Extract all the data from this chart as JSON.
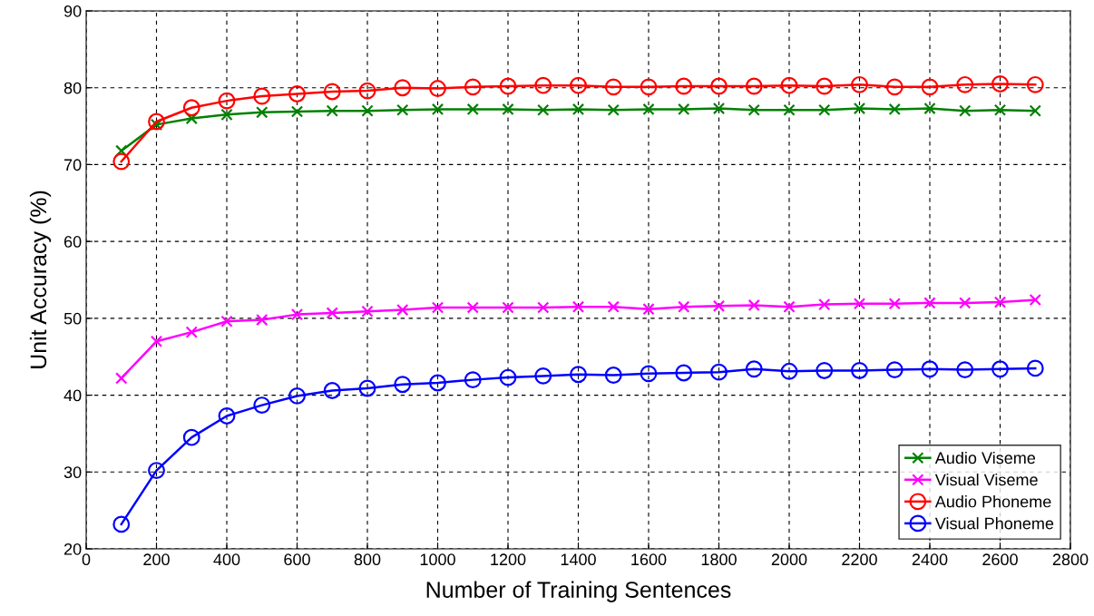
{
  "chart_data": {
    "type": "line",
    "xlabel": "Number of Training Sentences",
    "ylabel": "Unit Accuracy (%)",
    "x": [
      100,
      200,
      300,
      400,
      500,
      600,
      700,
      800,
      900,
      1000,
      1100,
      1200,
      1300,
      1400,
      1500,
      1600,
      1700,
      1800,
      1900,
      2000,
      2100,
      2200,
      2300,
      2400,
      2500,
      2600,
      2700
    ],
    "series": [
      {
        "name": "Audio Viseme",
        "color": "#008000",
        "marker": "cross",
        "values": [
          71.8,
          75.2,
          76.0,
          76.5,
          76.8,
          76.9,
          77.0,
          77.0,
          77.1,
          77.2,
          77.2,
          77.2,
          77.1,
          77.2,
          77.1,
          77.2,
          77.2,
          77.3,
          77.1,
          77.1,
          77.1,
          77.3,
          77.2,
          77.3,
          77.0,
          77.1,
          77.0
        ]
      },
      {
        "name": "Visual Viseme",
        "color": "#ff00ff",
        "marker": "cross",
        "values": [
          42.2,
          47.0,
          48.2,
          49.6,
          49.8,
          50.5,
          50.7,
          50.9,
          51.1,
          51.4,
          51.4,
          51.4,
          51.4,
          51.5,
          51.5,
          51.2,
          51.5,
          51.6,
          51.7,
          51.5,
          51.8,
          51.9,
          51.9,
          52.0,
          52.0,
          52.1,
          52.4
        ]
      },
      {
        "name": "Audio Phoneme",
        "color": "#ff0000",
        "marker": "circle",
        "values": [
          70.4,
          75.6,
          77.4,
          78.3,
          78.9,
          79.2,
          79.5,
          79.6,
          80.0,
          79.9,
          80.1,
          80.2,
          80.3,
          80.3,
          80.1,
          80.1,
          80.2,
          80.2,
          80.2,
          80.3,
          80.2,
          80.4,
          80.1,
          80.1,
          80.4,
          80.5,
          80.4
        ]
      },
      {
        "name": "Visual Phoneme",
        "color": "#0000ff",
        "marker": "circle",
        "values": [
          23.2,
          30.2,
          34.5,
          37.3,
          38.7,
          39.9,
          40.6,
          40.9,
          41.4,
          41.6,
          42.0,
          42.3,
          42.5,
          42.7,
          42.6,
          42.8,
          42.9,
          43.0,
          43.4,
          43.1,
          43.2,
          43.2,
          43.3,
          43.4,
          43.3,
          43.4,
          43.5
        ]
      }
    ],
    "xlim": [
      0,
      2800
    ],
    "xticks": [
      0,
      200,
      400,
      600,
      800,
      1000,
      1200,
      1400,
      1600,
      1800,
      2000,
      2200,
      2400,
      2600,
      2800
    ],
    "ylim": [
      20,
      90
    ],
    "yticks": [
      20,
      30,
      40,
      50,
      60,
      70,
      80,
      90
    ],
    "grid": true,
    "legend": "bottom right",
    "line_style": "solid"
  }
}
